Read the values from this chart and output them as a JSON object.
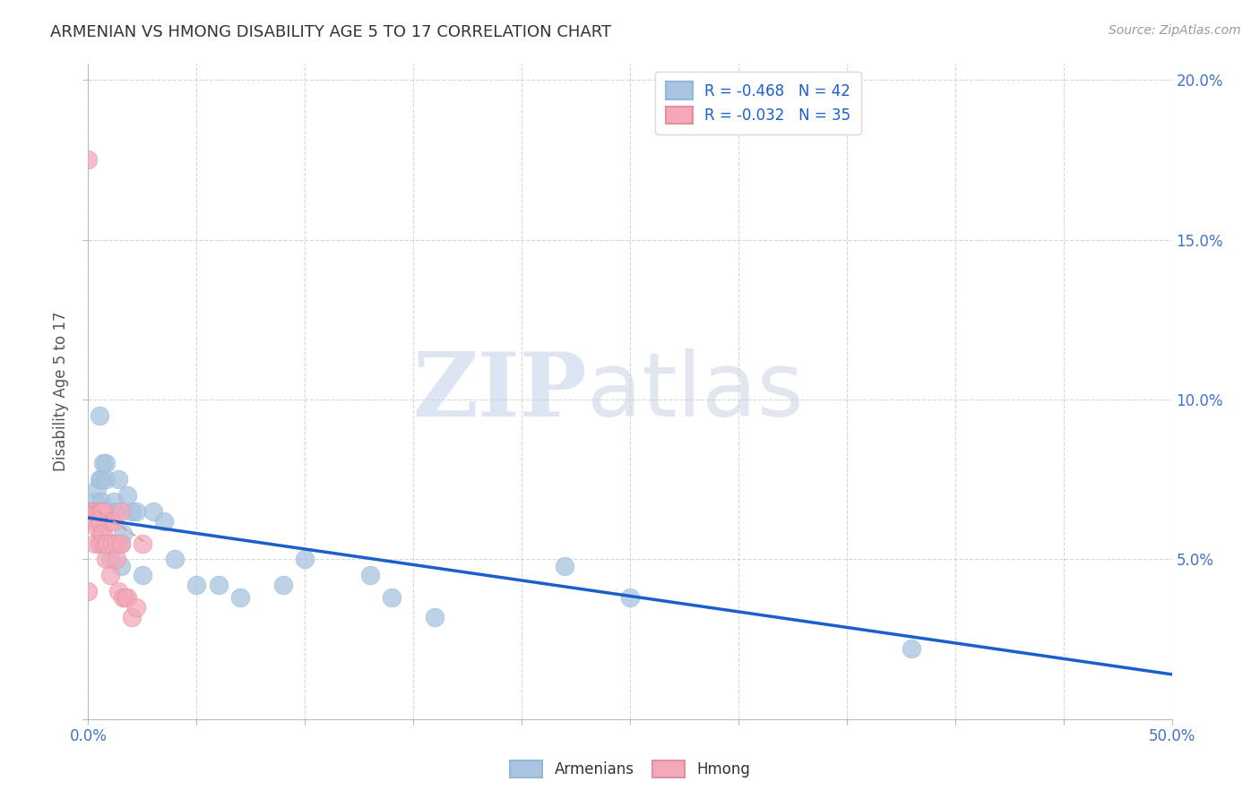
{
  "title": "ARMENIAN VS HMONG DISABILITY AGE 5 TO 17 CORRELATION CHART",
  "source": "Source: ZipAtlas.com",
  "ylabel": "Disability Age 5 to 17",
  "xlim": [
    0,
    0.5
  ],
  "ylim": [
    0,
    0.205
  ],
  "xticks": [
    0.0,
    0.05,
    0.1,
    0.15,
    0.2,
    0.25,
    0.3,
    0.35,
    0.4,
    0.45,
    0.5
  ],
  "xticklabels": [
    "0.0%",
    "",
    "",
    "",
    "",
    "",
    "",
    "",
    "",
    "",
    "50.0%"
  ],
  "yticks": [
    0.0,
    0.05,
    0.1,
    0.15,
    0.2
  ],
  "yticklabels": [
    "",
    "5.0%",
    "10.0%",
    "15.0%",
    "20.0%"
  ],
  "legend_r_armenian": "R = -0.468",
  "legend_n_armenian": "N = 42",
  "legend_r_hmong": "R = -0.032",
  "legend_n_hmong": "N = 35",
  "armenian_color": "#a8c4e0",
  "hmong_color": "#f4a8b8",
  "trendline_armenian_color": "#1a5fcc",
  "trendline_hmong_color": "#d4a0a8",
  "watermark_zip": "ZIP",
  "watermark_atlas": "atlas",
  "armenian_x": [
    0.002,
    0.003,
    0.004,
    0.004,
    0.005,
    0.005,
    0.005,
    0.006,
    0.006,
    0.007,
    0.008,
    0.008,
    0.009,
    0.009,
    0.01,
    0.01,
    0.011,
    0.012,
    0.012,
    0.013,
    0.014,
    0.015,
    0.015,
    0.016,
    0.018,
    0.02,
    0.022,
    0.025,
    0.03,
    0.035,
    0.04,
    0.05,
    0.06,
    0.07,
    0.09,
    0.1,
    0.13,
    0.14,
    0.16,
    0.22,
    0.25,
    0.38
  ],
  "armenian_y": [
    0.065,
    0.068,
    0.072,
    0.065,
    0.095,
    0.075,
    0.065,
    0.075,
    0.068,
    0.08,
    0.08,
    0.075,
    0.065,
    0.055,
    0.065,
    0.05,
    0.055,
    0.068,
    0.055,
    0.065,
    0.075,
    0.055,
    0.048,
    0.058,
    0.07,
    0.065,
    0.065,
    0.045,
    0.065,
    0.062,
    0.05,
    0.042,
    0.042,
    0.038,
    0.042,
    0.05,
    0.045,
    0.038,
    0.032,
    0.048,
    0.038,
    0.022
  ],
  "hmong_x": [
    0.0,
    0.0,
    0.001,
    0.002,
    0.003,
    0.003,
    0.004,
    0.004,
    0.005,
    0.005,
    0.005,
    0.006,
    0.006,
    0.006,
    0.007,
    0.007,
    0.007,
    0.008,
    0.008,
    0.009,
    0.01,
    0.01,
    0.011,
    0.012,
    0.013,
    0.013,
    0.014,
    0.015,
    0.015,
    0.016,
    0.017,
    0.018,
    0.02,
    0.022,
    0.025
  ],
  "hmong_y": [
    0.175,
    0.04,
    0.065,
    0.065,
    0.062,
    0.055,
    0.065,
    0.06,
    0.065,
    0.062,
    0.055,
    0.065,
    0.065,
    0.058,
    0.065,
    0.058,
    0.055,
    0.055,
    0.05,
    0.055,
    0.062,
    0.045,
    0.055,
    0.062,
    0.055,
    0.05,
    0.04,
    0.065,
    0.055,
    0.038,
    0.038,
    0.038,
    0.032,
    0.035,
    0.055
  ],
  "arm_trend_x": [
    0.0,
    0.5
  ],
  "arm_trend_y": [
    0.063,
    0.014
  ],
  "hmong_trend_x": [
    0.0,
    0.027
  ],
  "hmong_trend_y": [
    0.067,
    0.055
  ],
  "grid_color": "#cccccc",
  "background_color": "#ffffff",
  "title_color": "#333333",
  "axis_color": "#555555",
  "tick_label_color": "#4472c4"
}
